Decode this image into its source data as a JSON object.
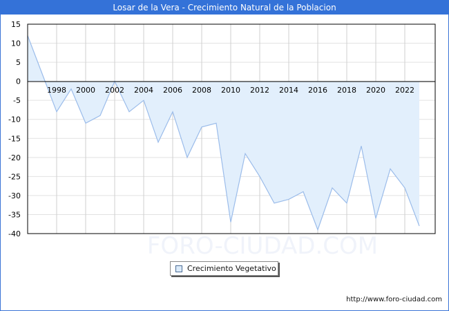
{
  "header": {
    "title": "Losar de la Vera - Crecimiento Natural de la Poblacion"
  },
  "legend": {
    "label": "Crecimiento Vegetativo",
    "swatch_color": "#dbeaf9"
  },
  "watermark": "FORO-CIUDAD.COM",
  "footer": {
    "url": "http://www.foro-ciudad.com"
  },
  "colors": {
    "title_bg": "#3472d8",
    "line": "#9bbcea",
    "fill": "#e2effc",
    "grid": "#d0d0d0"
  },
  "chart_data": {
    "type": "area",
    "title": "Losar de la Vera - Crecimiento Natural de la Poblacion",
    "xlabel": "",
    "ylabel": "",
    "ylim": [
      -40,
      15
    ],
    "yticks": [
      15,
      10,
      5,
      0,
      -5,
      -10,
      -15,
      -20,
      -25,
      -30,
      -35,
      -40
    ],
    "xticks": [
      "1998",
      "2000",
      "2002",
      "2004",
      "2006",
      "2008",
      "2010",
      "2012",
      "2014",
      "2016",
      "2018",
      "2020",
      "2022"
    ],
    "grid": true,
    "legend_position": "bottom-center",
    "x": [
      1996,
      1997,
      1998,
      1999,
      2000,
      2001,
      2002,
      2003,
      2004,
      2005,
      2006,
      2007,
      2008,
      2009,
      2010,
      2011,
      2012,
      2013,
      2014,
      2015,
      2016,
      2017,
      2018,
      2019,
      2020,
      2021,
      2022,
      2023
    ],
    "series": [
      {
        "name": "Crecimiento Vegetativo",
        "values": [
          12,
          2,
          -8,
          -2,
          -11,
          -9,
          0,
          -8,
          -5,
          -16,
          -8,
          -20,
          -12,
          -11,
          -37,
          -19,
          -25,
          -32,
          -31,
          -29,
          -39,
          -28,
          -32,
          -17,
          -36,
          -23,
          -28,
          -38
        ]
      }
    ]
  }
}
